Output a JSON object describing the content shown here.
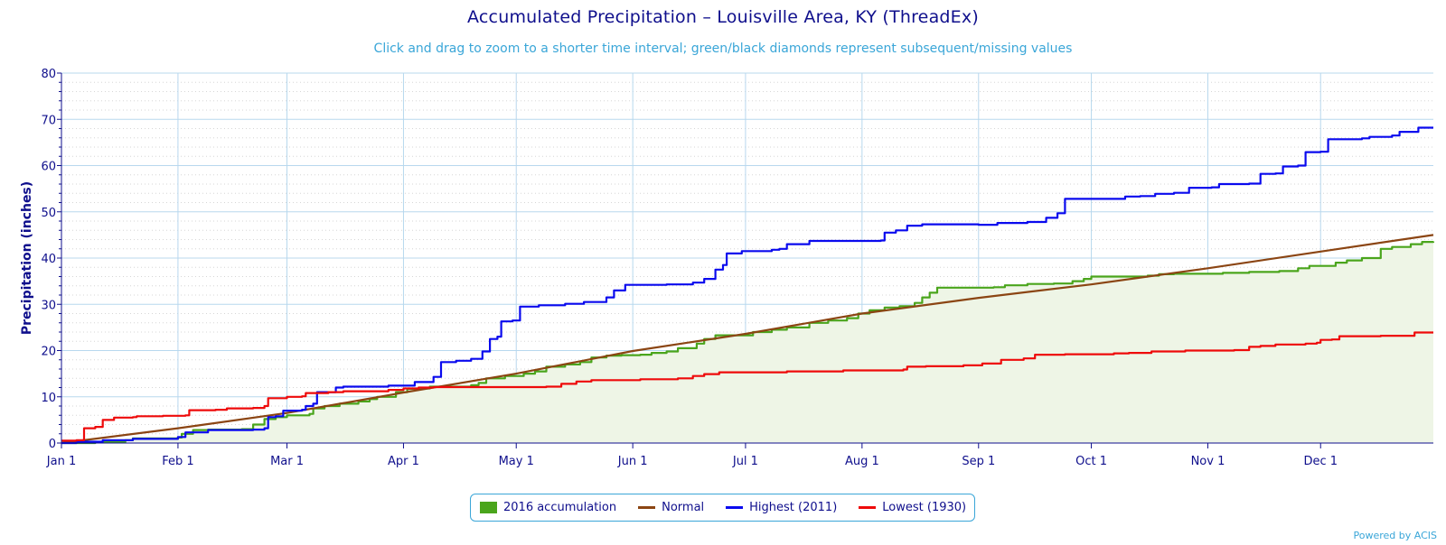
{
  "title": "Accumulated Precipitation – Louisville Area, KY (ThreadEx)",
  "subtitle": "Click and drag to zoom to a shorter time interval; green/black diamonds represent subsequent/missing values",
  "credit": "Powered by ACIS",
  "colors": {
    "accum": "#4aa51c",
    "accum_fill": "#eef5e6",
    "normal": "#8b4513",
    "highest": "#0a0aee",
    "lowest": "#ee0a0a",
    "axis": "#0f0f8c",
    "grid": "#b8d8ee"
  },
  "legend": [
    {
      "label": "2016 accumulation",
      "color": "#4aa51c",
      "style": "box"
    },
    {
      "label": "Normal",
      "color": "#8b4513",
      "style": "line"
    },
    {
      "label": "Highest (2011)",
      "color": "#0a0aee",
      "style": "line"
    },
    {
      "label": "Lowest (1930)",
      "color": "#ee0a0a",
      "style": "line"
    }
  ],
  "chart_data": {
    "type": "line",
    "title": "Accumulated Precipitation – Louisville Area, KY (ThreadEx)",
    "ylabel": "Precipitation (inches)",
    "xlabel": "",
    "ylim": [
      0,
      80
    ],
    "yticks": [
      0,
      10,
      20,
      30,
      40,
      50,
      60,
      70,
      80
    ],
    "xlim": [
      1,
      366
    ],
    "xticks": [
      {
        "label": "Jan 1",
        "day": 1
      },
      {
        "label": "Feb 1",
        "day": 32
      },
      {
        "label": "Mar 1",
        "day": 61
      },
      {
        "label": "Apr 1",
        "day": 92
      },
      {
        "label": "May 1",
        "day": 122
      },
      {
        "label": "Jun 1",
        "day": 153
      },
      {
        "label": "Jul 1",
        "day": 183
      },
      {
        "label": "Aug 1",
        "day": 214
      },
      {
        "label": "Sep 1",
        "day": 245
      },
      {
        "label": "Oct 1",
        "day": 275
      },
      {
        "label": "Nov 1",
        "day": 306
      },
      {
        "label": "Dec 1",
        "day": 336
      }
    ],
    "grid": true,
    "legend_position": "bottom",
    "series": [
      {
        "name": "Normal",
        "step": false,
        "points": [
          [
            1,
            0
          ],
          [
            32,
            3.2
          ],
          [
            61,
            6.5
          ],
          [
            92,
            10.9
          ],
          [
            122,
            15.0
          ],
          [
            153,
            19.9
          ],
          [
            183,
            23.6
          ],
          [
            214,
            28.0
          ],
          [
            245,
            31.4
          ],
          [
            275,
            34.3
          ],
          [
            306,
            37.8
          ],
          [
            336,
            41.4
          ],
          [
            366,
            45.0
          ]
        ]
      },
      {
        "name": "Highest (2011)",
        "step": true,
        "points": [
          [
            1,
            0
          ],
          [
            5,
            0.3
          ],
          [
            12,
            0.6
          ],
          [
            20,
            0.9
          ],
          [
            32,
            1.3
          ],
          [
            34,
            2.3
          ],
          [
            40,
            2.8
          ],
          [
            52,
            2.9
          ],
          [
            55,
            3.2
          ],
          [
            56,
            5.6
          ],
          [
            58,
            5.8
          ],
          [
            60,
            7.0
          ],
          [
            65,
            7.2
          ],
          [
            66,
            8.0
          ],
          [
            68,
            8.5
          ],
          [
            69,
            11.0
          ],
          [
            74,
            12.0
          ],
          [
            76,
            12.2
          ],
          [
            88,
            12.4
          ],
          [
            95,
            13.2
          ],
          [
            100,
            14.3
          ],
          [
            102,
            17.5
          ],
          [
            106,
            17.8
          ],
          [
            110,
            18.2
          ],
          [
            113,
            19.8
          ],
          [
            115,
            22.5
          ],
          [
            117,
            23.0
          ],
          [
            118,
            26.3
          ],
          [
            121,
            26.5
          ],
          [
            123,
            29.5
          ],
          [
            128,
            29.8
          ],
          [
            135,
            30.1
          ],
          [
            140,
            30.5
          ],
          [
            146,
            31.5
          ],
          [
            148,
            33.0
          ],
          [
            151,
            34.2
          ],
          [
            162,
            34.3
          ],
          [
            169,
            34.7
          ],
          [
            172,
            35.5
          ],
          [
            175,
            37.5
          ],
          [
            177,
            38.5
          ],
          [
            178,
            41.0
          ],
          [
            182,
            41.5
          ],
          [
            190,
            41.8
          ],
          [
            192,
            42.0
          ],
          [
            194,
            43.0
          ],
          [
            200,
            43.7
          ],
          [
            219,
            43.8
          ],
          [
            220,
            45.5
          ],
          [
            223,
            46.0
          ],
          [
            226,
            47.0
          ],
          [
            230,
            47.3
          ],
          [
            245,
            47.2
          ],
          [
            250,
            47.6
          ],
          [
            258,
            47.8
          ],
          [
            263,
            48.7
          ],
          [
            266,
            49.7
          ],
          [
            268,
            52.8
          ],
          [
            283,
            52.8
          ],
          [
            284,
            53.3
          ],
          [
            288,
            53.4
          ],
          [
            292,
            53.9
          ],
          [
            297,
            54.1
          ],
          [
            301,
            55.2
          ],
          [
            307,
            55.3
          ],
          [
            309,
            56.0
          ],
          [
            317,
            56.1
          ],
          [
            320,
            58.2
          ],
          [
            324,
            58.3
          ],
          [
            326,
            59.8
          ],
          [
            330,
            60.0
          ],
          [
            332,
            62.9
          ],
          [
            336,
            63.0
          ],
          [
            338,
            65.7
          ],
          [
            347,
            65.9
          ],
          [
            349,
            66.2
          ],
          [
            355,
            66.5
          ],
          [
            357,
            67.3
          ],
          [
            362,
            68.2
          ],
          [
            366,
            68.2
          ]
        ]
      },
      {
        "name": "Lowest (1930)",
        "step": true,
        "points": [
          [
            1,
            0.5
          ],
          [
            5,
            0.6
          ],
          [
            7,
            3.2
          ],
          [
            10,
            3.5
          ],
          [
            12,
            5.0
          ],
          [
            15,
            5.5
          ],
          [
            20,
            5.6
          ],
          [
            21,
            5.8
          ],
          [
            28,
            5.9
          ],
          [
            34,
            6.0
          ],
          [
            35,
            7.1
          ],
          [
            42,
            7.2
          ],
          [
            45,
            7.5
          ],
          [
            52,
            7.6
          ],
          [
            55,
            8.0
          ],
          [
            56,
            9.7
          ],
          [
            61,
            10.0
          ],
          [
            65,
            10.1
          ],
          [
            66,
            10.8
          ],
          [
            72,
            11.0
          ],
          [
            76,
            11.2
          ],
          [
            88,
            11.5
          ],
          [
            92,
            11.8
          ],
          [
            96,
            12.0
          ],
          [
            100,
            12.1
          ],
          [
            130,
            12.2
          ],
          [
            134,
            12.8
          ],
          [
            138,
            13.3
          ],
          [
            142,
            13.6
          ],
          [
            155,
            13.8
          ],
          [
            165,
            14.0
          ],
          [
            169,
            14.5
          ],
          [
            172,
            14.9
          ],
          [
            176,
            15.3
          ],
          [
            194,
            15.5
          ],
          [
            209,
            15.7
          ],
          [
            225,
            15.9
          ],
          [
            226,
            16.5
          ],
          [
            231,
            16.6
          ],
          [
            241,
            16.8
          ],
          [
            246,
            17.2
          ],
          [
            251,
            18.0
          ],
          [
            257,
            18.3
          ],
          [
            260,
            19.1
          ],
          [
            268,
            19.2
          ],
          [
            281,
            19.4
          ],
          [
            285,
            19.5
          ],
          [
            291,
            19.8
          ],
          [
            300,
            20.0
          ],
          [
            313,
            20.1
          ],
          [
            317,
            20.8
          ],
          [
            320,
            21.0
          ],
          [
            324,
            21.3
          ],
          [
            332,
            21.5
          ],
          [
            335,
            21.7
          ],
          [
            336,
            22.3
          ],
          [
            339,
            22.4
          ],
          [
            341,
            23.1
          ],
          [
            352,
            23.2
          ],
          [
            361,
            23.9
          ],
          [
            366,
            23.9
          ]
        ]
      },
      {
        "name": "2016 accumulation",
        "step": true,
        "area": true,
        "points": [
          [
            1,
            0
          ],
          [
            10,
            0.2
          ],
          [
            18,
            0.6
          ],
          [
            20,
            1.0
          ],
          [
            32,
            1.2
          ],
          [
            33,
            2.0
          ],
          [
            36,
            2.8
          ],
          [
            40,
            2.9
          ],
          [
            49,
            3.0
          ],
          [
            52,
            4.0
          ],
          [
            55,
            5.2
          ],
          [
            58,
            5.6
          ],
          [
            61,
            6.0
          ],
          [
            67,
            6.3
          ],
          [
            68,
            7.5
          ],
          [
            71,
            8.0
          ],
          [
            75,
            8.5
          ],
          [
            80,
            9.0
          ],
          [
            83,
            9.5
          ],
          [
            85,
            10.0
          ],
          [
            90,
            11.0
          ],
          [
            93,
            11.7
          ],
          [
            97,
            11.8
          ],
          [
            99,
            12.2
          ],
          [
            107,
            12.2
          ],
          [
            110,
            12.5
          ],
          [
            112,
            13.0
          ],
          [
            114,
            14.0
          ],
          [
            119,
            14.5
          ],
          [
            124,
            15.0
          ],
          [
            127,
            15.5
          ],
          [
            130,
            16.5
          ],
          [
            135,
            17.0
          ],
          [
            139,
            17.5
          ],
          [
            142,
            18.5
          ],
          [
            146,
            18.9
          ],
          [
            150,
            19.0
          ],
          [
            155,
            19.1
          ],
          [
            158,
            19.5
          ],
          [
            162,
            19.8
          ],
          [
            165,
            20.5
          ],
          [
            170,
            21.5
          ],
          [
            172,
            22.5
          ],
          [
            175,
            23.3
          ],
          [
            185,
            24.0
          ],
          [
            190,
            24.5
          ],
          [
            194,
            25.0
          ],
          [
            200,
            26.0
          ],
          [
            205,
            26.5
          ],
          [
            210,
            27.0
          ],
          [
            213,
            28.0
          ],
          [
            216,
            28.7
          ],
          [
            220,
            29.3
          ],
          [
            224,
            29.6
          ],
          [
            228,
            30.3
          ],
          [
            230,
            31.5
          ],
          [
            232,
            32.5
          ],
          [
            234,
            33.6
          ],
          [
            249,
            33.7
          ],
          [
            252,
            34.1
          ],
          [
            258,
            34.4
          ],
          [
            265,
            34.5
          ],
          [
            270,
            35.0
          ],
          [
            273,
            35.5
          ],
          [
            275,
            36.0
          ],
          [
            290,
            36.2
          ],
          [
            293,
            36.5
          ],
          [
            297,
            36.6
          ],
          [
            310,
            36.8
          ],
          [
            317,
            37.0
          ],
          [
            325,
            37.2
          ],
          [
            330,
            37.8
          ],
          [
            333,
            38.3
          ],
          [
            340,
            39.0
          ],
          [
            343,
            39.5
          ],
          [
            347,
            40.0
          ],
          [
            352,
            42.0
          ],
          [
            355,
            42.4
          ],
          [
            360,
            43.0
          ],
          [
            363,
            43.5
          ],
          [
            366,
            43.6
          ]
        ]
      }
    ]
  }
}
